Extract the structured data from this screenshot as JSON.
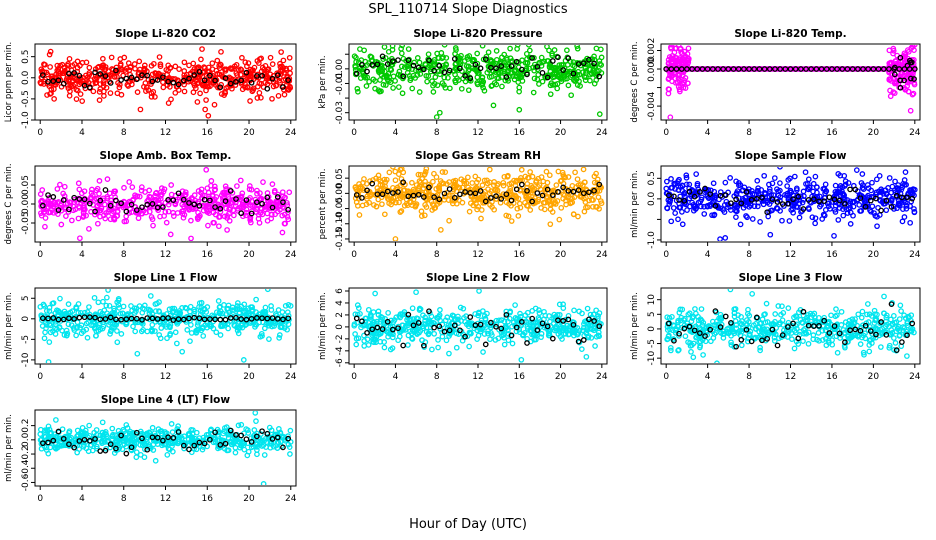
{
  "title": "SPL_110714  Slope Diagnostics",
  "x_axis_label": "Hour of Day (UTC)",
  "chart_data": [
    {
      "type": "scatter",
      "title": "Slope Li-820 CO2",
      "ylabel": "Licor ppm per min.",
      "color": "#ff0000",
      "x_ticks": [
        0,
        4,
        8,
        12,
        16,
        20,
        24
      ],
      "y_ticks": [
        -1.0,
        -0.5,
        0.0,
        0.5
      ],
      "y_tick_labels": [
        "-1.0",
        "-0.5",
        "0.0",
        "0.5"
      ],
      "xlim": [
        -0.5,
        24.5
      ],
      "ylim": [
        -1.0,
        0.8
      ],
      "spread": 0.22,
      "overlay_spread": 0.1,
      "outliers": [
        [
          1.0,
          0.62
        ],
        [
          0.9,
          0.55
        ],
        [
          15.5,
          0.68
        ],
        [
          16.1,
          -0.9
        ],
        [
          15.8,
          -0.75
        ],
        [
          9.6,
          -0.75
        ],
        [
          20.1,
          -0.55
        ],
        [
          23.4,
          -0.4
        ],
        [
          12.3,
          -0.6
        ],
        [
          6.0,
          0.45
        ]
      ],
      "note": "dense red scatter centered near 0; black points overlaid"
    },
    {
      "type": "scatter",
      "title": "Slope Li-820 Pressure",
      "ylabel": "kPa per min.",
      "color": "#00c800",
      "x_ticks": [
        0,
        4,
        8,
        12,
        16,
        20,
        24
      ],
      "y_ticks": [
        -0.03,
        -0.02,
        -0.01,
        0.0,
        0.01
      ],
      "y_tick_labels": [
        "-0.03",
        "",
        "-0.01",
        "0.00",
        ""
      ],
      "xlim": [
        -0.5,
        24.5
      ],
      "ylim": [
        -0.035,
        0.017
      ],
      "spread": 0.007,
      "overlay_spread": 0.004,
      "outliers": [
        [
          8.0,
          -0.033
        ],
        [
          13.5,
          -0.025
        ],
        [
          16.0,
          -0.028
        ],
        [
          23.8,
          -0.031
        ],
        [
          8.3,
          -0.03
        ]
      ]
    },
    {
      "type": "scatter",
      "title": "Slope Li-820 Temp.",
      "ylabel": "degrees C per min.",
      "color": "#ff00ff",
      "x_ticks": [
        0,
        4,
        8,
        12,
        16,
        20,
        24
      ],
      "y_ticks": [
        -0.004,
        -0.002,
        0.0,
        0.002
      ],
      "y_tick_labels": [
        "-0.004",
        "",
        "0.000",
        "0.002"
      ],
      "xlim": [
        -0.5,
        24.5
      ],
      "ylim": [
        -0.0055,
        0.0027
      ],
      "flat_value": 0.0,
      "active_ranges": [
        [
          0.2,
          2.2
        ],
        [
          21.5,
          24.0
        ]
      ],
      "active_spread": 0.0012,
      "outliers": [
        [
          0.4,
          -0.0052
        ],
        [
          23.6,
          -0.0045
        ],
        [
          23.8,
          0.0024
        ],
        [
          0.8,
          0.0018
        ]
      ]
    },
    {
      "type": "scatter",
      "title": "Slope Amb. Box Temp.",
      "ylabel": "degrees C per min.",
      "color": "#ff00ff",
      "x_ticks": [
        0,
        4,
        8,
        12,
        16,
        20,
        24
      ],
      "y_ticks": [
        -0.05,
        0.0,
        0.05
      ],
      "y_tick_labels": [
        "-0.05",
        "0.00",
        "0.05"
      ],
      "xlim": [
        -0.5,
        24.5
      ],
      "ylim": [
        -0.1,
        0.1
      ],
      "spread": 0.025,
      "overlay_spread": 0.015,
      "outliers": [
        [
          3.8,
          -0.09
        ],
        [
          12.5,
          -0.08
        ],
        [
          23.2,
          -0.075
        ],
        [
          15.9,
          0.09
        ]
      ]
    },
    {
      "type": "scatter",
      "title": "Slope Gas Stream RH",
      "ylabel": "percent per min.",
      "color": "#ffa500",
      "x_ticks": [
        0,
        4,
        8,
        12,
        16,
        20,
        24
      ],
      "y_ticks": [
        -0.15,
        -0.1,
        -0.05,
        0.0,
        0.05
      ],
      "y_tick_labels": [
        "-0.15",
        "-0.10",
        "-0.05",
        "0.00",
        "0.05"
      ],
      "xlim": [
        -0.5,
        24.5
      ],
      "ylim": [
        -0.16,
        0.09
      ],
      "spread": 0.035,
      "overlay_spread": 0.015,
      "outliers": [
        [
          4.0,
          -0.15
        ],
        [
          9.2,
          -0.09
        ],
        [
          8.4,
          -0.12
        ]
      ]
    },
    {
      "type": "scatter",
      "title": "Slope Sample Flow",
      "ylabel": "ml/min per min.",
      "color": "#0000ff",
      "x_ticks": [
        0,
        4,
        8,
        12,
        16,
        20,
        24
      ],
      "y_ticks": [
        -1.0,
        -0.5,
        0.0,
        0.5
      ],
      "y_tick_labels": [
        "-1.0",
        "",
        "0.0",
        "0.5"
      ],
      "xlim": [
        -0.5,
        24.5
      ],
      "ylim": [
        -1.05,
        0.8
      ],
      "spread": 0.25,
      "overlay_spread": 0.12,
      "outliers": [
        [
          5.2,
          -0.98
        ],
        [
          5.7,
          -0.95
        ],
        [
          16.2,
          -0.9
        ],
        [
          18.4,
          0.7
        ],
        [
          23.1,
          0.65
        ]
      ]
    },
    {
      "type": "scatter",
      "title": "Slope Line 1 Flow",
      "ylabel": "ml/min per min.",
      "color": "#00e5ee",
      "x_ticks": [
        0,
        4,
        8,
        12,
        16,
        20,
        24
      ],
      "y_ticks": [
        -10,
        -5,
        0,
        5
      ],
      "y_tick_labels": [
        "-10",
        "-5",
        "0",
        "5"
      ],
      "xlim": [
        -0.5,
        24.5
      ],
      "ylim": [
        -11,
        7.5
      ],
      "spread": 2.2,
      "overlay_spread": 0.15,
      "outliers": [
        [
          0.8,
          -10.5
        ],
        [
          6.5,
          7.0
        ],
        [
          9.3,
          -8.5
        ],
        [
          21.8,
          7.2
        ],
        [
          19.5,
          -10.0
        ],
        [
          13.6,
          -8.0
        ]
      ]
    },
    {
      "type": "scatter",
      "title": "Slope Line 2 Flow",
      "ylabel": "ml/min per min.",
      "color": "#00e5ee",
      "x_ticks": [
        0,
        4,
        8,
        12,
        16,
        20,
        24
      ],
      "y_ticks": [
        -6,
        -4,
        -2,
        0,
        2,
        4,
        6
      ],
      "y_tick_labels": [
        "-6",
        "-4",
        "-2",
        "0",
        "2",
        "4",
        "6"
      ],
      "xlim": [
        -0.5,
        24.5
      ],
      "ylim": [
        -6.2,
        6.5
      ],
      "spread": 1.5,
      "overlay_spread": 1.4,
      "outliers": [
        [
          6.0,
          5.8
        ],
        [
          12.1,
          6.0
        ],
        [
          16.2,
          -5.5
        ],
        [
          22.5,
          -5.0
        ]
      ]
    },
    {
      "type": "scatter",
      "title": "Slope Line 3 Flow",
      "ylabel": "ml/min per min.",
      "color": "#00e5ee",
      "x_ticks": [
        0,
        4,
        8,
        12,
        16,
        20,
        24
      ],
      "y_ticks": [
        -10,
        -5,
        0,
        5,
        10
      ],
      "y_tick_labels": [
        "-10",
        "-5",
        "0",
        "5",
        "10"
      ],
      "xlim": [
        -0.5,
        24.5
      ],
      "ylim": [
        -12,
        14
      ],
      "spread": 3.5,
      "overlay_spread": 3.0,
      "outliers": [
        [
          6.2,
          13.5
        ],
        [
          4.9,
          -12.0
        ],
        [
          8.3,
          12.0
        ]
      ]
    },
    {
      "type": "scatter",
      "title": "Slope Line 4 (LT) Flow",
      "ylabel": "ml/min per min.",
      "color": "#00e5ee",
      "x_ticks": [
        0,
        4,
        8,
        12,
        16,
        20,
        24
      ],
      "y_ticks": [
        -0.6,
        -0.4,
        -0.2,
        0.0,
        0.2
      ],
      "y_tick_labels": [
        "-0.6",
        "-0.4",
        "-0.2",
        "0.0",
        "0.2"
      ],
      "xlim": [
        -0.5,
        24.5
      ],
      "ylim": [
        -0.65,
        0.42
      ],
      "spread": 0.08,
      "overlay_spread": 0.08,
      "outliers": [
        [
          21.4,
          -0.62
        ],
        [
          20.6,
          0.38
        ],
        [
          1.5,
          0.28
        ]
      ]
    }
  ]
}
